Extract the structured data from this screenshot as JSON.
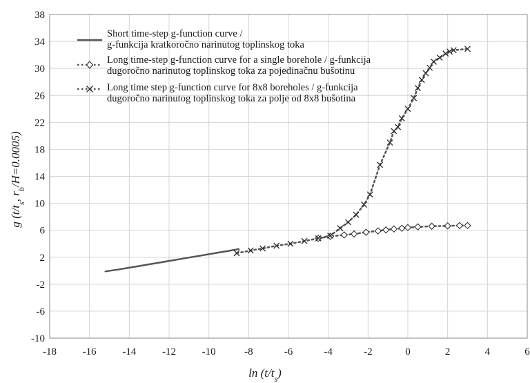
{
  "chart_data": {
    "type": "line",
    "title": "",
    "xlabel": "ln (t/t",
    "xlabel_sub": "s",
    "xlabel_close": ")",
    "ylabel": "g (t/t",
    "ylabel_sub": "s",
    "ylabel_mid": ", r",
    "ylabel_sub2": "b",
    "ylabel_tail": "/H=0.0005)",
    "xlim": [
      -18,
      6
    ],
    "ylim": [
      -10,
      38
    ],
    "xticks": [
      -18,
      -16,
      -14,
      -12,
      -10,
      -8,
      -6,
      -4,
      -2,
      0,
      2,
      4,
      6
    ],
    "yticks": [
      -10,
      -6,
      -2,
      2,
      6,
      10,
      14,
      18,
      22,
      26,
      30,
      34,
      38
    ],
    "ytick_labels": [
      "-10",
      "-6",
      "-2",
      "2",
      "6",
      "10",
      "14",
      "18",
      "22",
      "26",
      "30",
      "34",
      "38"
    ],
    "grid": true,
    "legend_position": "top-left",
    "series": [
      {
        "name": "Short time-step g-function curve / g-funkcija kratkoročno narinutog toplinskog toka",
        "legend_lines": [
          "Short time-step g-function curve /",
          "g-funkcija kratkoročno narinutog toplinskog toka"
        ],
        "style": "solid",
        "marker": "none",
        "color": "#555555",
        "x": [
          -15.2,
          -14.5,
          -14.0,
          -13.5,
          -13.0,
          -12.5,
          -12.0,
          -11.5,
          -11.0,
          -10.5,
          -10.0,
          -9.5,
          -9.0,
          -8.5
        ],
        "y": [
          -0.1,
          0.2,
          0.45,
          0.7,
          0.95,
          1.2,
          1.45,
          1.7,
          1.95,
          2.2,
          2.45,
          2.7,
          2.95,
          3.2
        ]
      },
      {
        "name": "Long time-step g-function curve for a single borehole / g-funkcija dugoročno narinutog toplinskog toka za pojedinačnu bušotinu",
        "legend_lines": [
          "Long time-step g-function curve for a single borehole / g-funkcija",
          "dugoročno narinutog toplinskog toka za pojedinačnu bušotinu"
        ],
        "style": "dotted",
        "marker": "diamond",
        "color": "#555555",
        "x": [
          -4.5,
          -3.9,
          -3.2,
          -2.7,
          -2.1,
          -1.5,
          -1.1,
          -0.7,
          -0.3,
          0.0,
          0.5,
          1.2,
          2.0,
          2.6,
          3.0
        ],
        "y": [
          4.8,
          5.1,
          5.3,
          5.45,
          5.7,
          5.9,
          6.05,
          6.2,
          6.3,
          6.4,
          6.5,
          6.6,
          6.65,
          6.7,
          6.7
        ]
      },
      {
        "name": "Long time step g-function curve for 8x8 boreholes / g-funkcija dugoročno narinutog toplinskog toka za polje od 8x8 bušotina",
        "legend_lines": [
          "Long time step g-function curve for 8x8 boreholes / g-funkcija",
          "dugoročno narinutog toplinskog toka za polje od 8x8 bušotina"
        ],
        "style": "dotted",
        "marker": "x",
        "color": "#555555",
        "x": [
          -8.6,
          -7.9,
          -7.3,
          -6.6,
          -5.9,
          -5.2,
          -4.5,
          -3.9,
          -3.4,
          -3.0,
          -2.6,
          -2.2,
          -1.9,
          -1.4,
          -0.9,
          -0.7,
          -0.5,
          -0.3,
          0.0,
          0.3,
          0.5,
          0.7,
          0.9,
          1.1,
          1.3,
          1.6,
          1.9,
          2.1,
          2.3,
          3.0
        ],
        "y": [
          2.6,
          3.0,
          3.3,
          3.7,
          4.0,
          4.4,
          4.8,
          5.2,
          6.3,
          7.2,
          8.3,
          9.8,
          11.3,
          15.7,
          19.0,
          20.7,
          21.3,
          22.6,
          24.0,
          25.6,
          27.1,
          28.3,
          29.3,
          30.1,
          31.0,
          31.6,
          32.2,
          32.5,
          32.7,
          32.9
        ]
      }
    ]
  }
}
